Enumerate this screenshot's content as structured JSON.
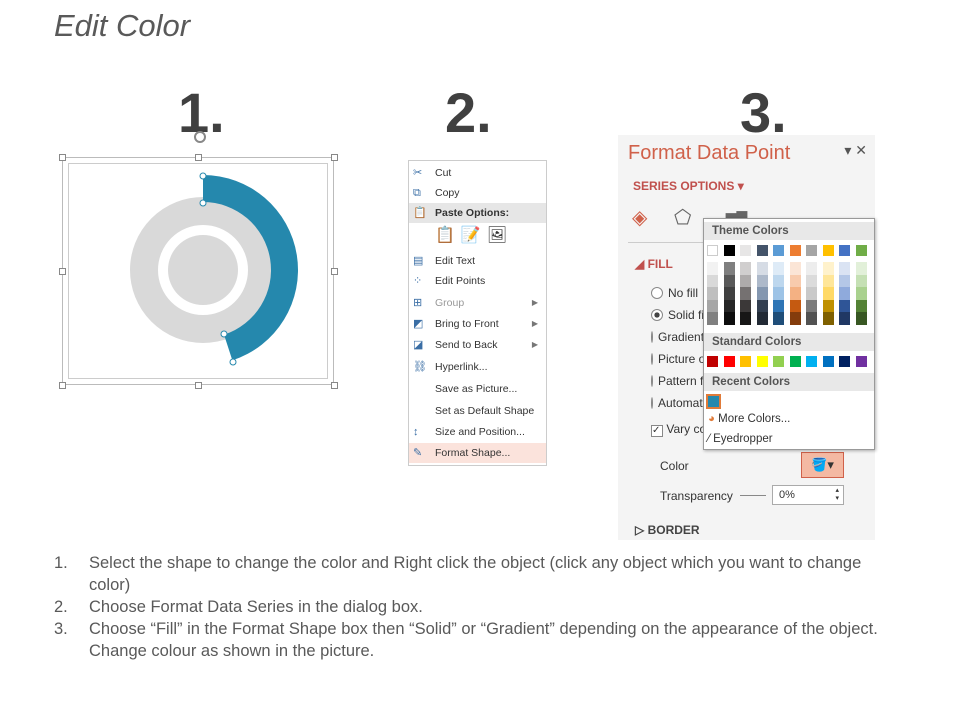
{
  "title": "Edit Color",
  "steps": {
    "n1": "1.",
    "n2": "2.",
    "n3": "3."
  },
  "donut": {
    "accent": "#2588ad",
    "ring": "#d9d9d9",
    "selected_fraction": 0.45
  },
  "menu": {
    "items": [
      {
        "label": "Cut",
        "icon": "scissors-icon"
      },
      {
        "label": "Copy",
        "icon": "copy-icon"
      },
      {
        "label": "Paste Options:",
        "icon": "paste-icon"
      },
      {
        "label": "Edit Text",
        "icon": "edit-text-icon"
      },
      {
        "label": "Edit Points",
        "icon": "edit-points-icon"
      },
      {
        "label": "Group",
        "icon": "group-icon"
      },
      {
        "label": "Bring to Front",
        "icon": "bring-front-icon"
      },
      {
        "label": "Send to Back",
        "icon": "send-back-icon"
      },
      {
        "label": "Hyperlink...",
        "icon": "hyperlink-icon"
      },
      {
        "label": "Save as Picture...",
        "icon": ""
      },
      {
        "label": "Set as Default Shape",
        "icon": ""
      },
      {
        "label": "Size and Position...",
        "icon": "size-position-icon"
      },
      {
        "label": "Format Shape...",
        "icon": "format-shape-icon"
      }
    ]
  },
  "pane": {
    "title": "Format Data Point",
    "series_options": "SERIES OPTIONS",
    "fill": "FILL",
    "options": [
      "No fill",
      "Solid fill",
      "Gradient fill",
      "Picture or texture fill",
      "Pattern fill",
      "Automatic"
    ],
    "vary": "Vary colors by point",
    "color_label": "Color",
    "transparency_label": "Transparency",
    "transparency_value": "0%",
    "border": "BORDER"
  },
  "colors": {
    "theme_label": "Theme Colors",
    "standard_label": "Standard Colors",
    "recent_label": "Recent Colors",
    "more": "More Colors...",
    "eyedropper": "Eyedropper",
    "theme": [
      [
        "#ffffff",
        "#f2f2f2",
        "#d9d9d9",
        "#bfbfbf",
        "#a6a6a6",
        "#808080"
      ],
      [
        "#000000",
        "#7f7f7f",
        "#595959",
        "#404040",
        "#262626",
        "#0d0d0d"
      ],
      [
        "#e7e6e6",
        "#d0cece",
        "#aeabab",
        "#757171",
        "#3b3838",
        "#171616"
      ],
      [
        "#44546a",
        "#d6dce5",
        "#adb9ca",
        "#8497b0",
        "#333f50",
        "#222a35"
      ],
      [
        "#5b9bd5",
        "#deebf7",
        "#bdd7ee",
        "#9dc3e6",
        "#2e75b6",
        "#1f4e79"
      ],
      [
        "#ed7d31",
        "#fbe5d6",
        "#f8cbad",
        "#f4b183",
        "#c55a11",
        "#843c0c"
      ],
      [
        "#a5a5a5",
        "#ededed",
        "#dbdbdb",
        "#c9c9c9",
        "#7b7b7b",
        "#525252"
      ],
      [
        "#ffc000",
        "#fff2cc",
        "#ffe699",
        "#ffd966",
        "#bf9000",
        "#7f6000"
      ],
      [
        "#4472c4",
        "#dae3f3",
        "#b4c7e7",
        "#8faadc",
        "#2f5597",
        "#203864"
      ],
      [
        "#70ad47",
        "#e2f0d9",
        "#c5e0b4",
        "#a9d18e",
        "#548235",
        "#385723"
      ]
    ],
    "standard": [
      "#c00000",
      "#ff0000",
      "#ffc000",
      "#ffff00",
      "#92d050",
      "#00b050",
      "#00b0f0",
      "#0070c0",
      "#002060",
      "#7030a0"
    ],
    "recent": [
      "#2588ad"
    ]
  },
  "instructions": [
    {
      "n": "1.",
      "text": "Select the shape to change the color and Right click the object (click any object which you want to change color)"
    },
    {
      "n": "2.",
      "text": "Choose Format Data Series in the dialog box."
    },
    {
      "n": "3.",
      "text": "Choose “Fill” in the Format Shape box then “Solid” or “Gradient” depending on the appearance of the object. Change colour as shown in the picture."
    }
  ]
}
